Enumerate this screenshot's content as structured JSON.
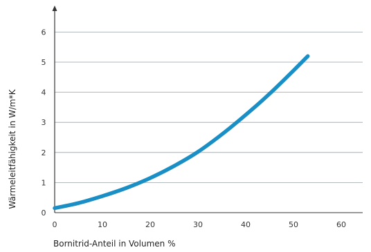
{
  "chart_data": {
    "type": "line",
    "title": "",
    "xlabel": "Bornitrid-Anteil in Volumen %",
    "ylabel": "Wärmeleitfähigkeit in W/m*K",
    "xlim": [
      0,
      65
    ],
    "ylim": [
      0,
      6.5
    ],
    "xticks": [
      "0",
      "10",
      "20",
      "30",
      "40",
      "50",
      "60"
    ],
    "yticks": [
      "0",
      "1",
      "2",
      "3",
      "4",
      "5",
      "6"
    ],
    "grid": "horizontal",
    "colors": {
      "line": "#1a8fc6",
      "grid": "#9aa3a8",
      "axis": "#333333"
    },
    "series": [
      {
        "x": [
          0,
          5,
          10,
          15,
          20,
          25,
          30,
          35,
          40,
          45,
          50,
          53
        ],
        "values": [
          0.15,
          0.32,
          0.55,
          0.82,
          1.15,
          1.55,
          2.02,
          2.6,
          3.25,
          3.95,
          4.72,
          5.2
        ]
      }
    ]
  }
}
